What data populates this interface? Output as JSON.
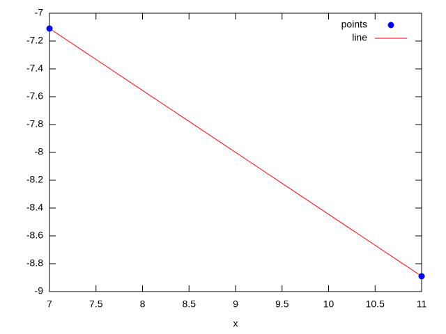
{
  "chart_data": {
    "type": "scatter",
    "xlabel": "x",
    "x": [
      7,
      11
    ],
    "series": [
      {
        "name": "points",
        "mode": "points",
        "color": "#0000ff",
        "values": [
          -7.11,
          -8.89
        ]
      },
      {
        "name": "line",
        "mode": "line",
        "color": "#ff0000",
        "values": [
          -7.11,
          -8.89
        ]
      }
    ],
    "xlim": [
      7,
      11
    ],
    "xticks": [
      7,
      7.5,
      8,
      8.5,
      9,
      9.5,
      10,
      10.5,
      11
    ],
    "ylim": [
      -9,
      -7
    ],
    "yticks": [
      -9,
      -8.8,
      -8.6,
      -8.4,
      -8.2,
      -8,
      -7.8,
      -7.6,
      -7.4,
      -7.2,
      -7
    ],
    "legend": "top right",
    "mirror_ticks": true
  }
}
